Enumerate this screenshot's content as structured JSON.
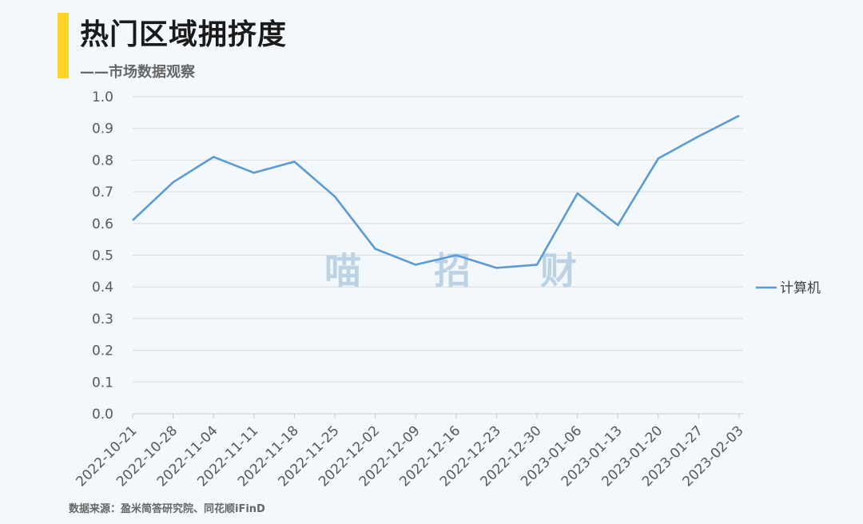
{
  "header": {
    "title": "热门区域拥挤度",
    "subtitle": "——市场数据观察",
    "accent_color": "#fdd22a"
  },
  "watermark": {
    "chars": [
      "喵",
      "招",
      "财"
    ]
  },
  "source": "数据来源：盈米简答研究院、同花顺iFinD",
  "chart_data": {
    "type": "line",
    "title": "",
    "xlabel": "",
    "ylabel": "",
    "x": [
      "2022-10-21",
      "2022-10-28",
      "2022-11-04",
      "2022-11-11",
      "2022-11-18",
      "2022-11-25",
      "2022-12-02",
      "2022-12-09",
      "2022-12-16",
      "2022-12-23",
      "2022-12-30",
      "2023-01-06",
      "2023-01-13",
      "2023-01-20",
      "2023-01-27",
      "2023-02-03"
    ],
    "y_ticks": [
      "1.0",
      "0.9",
      "0.8",
      "0.7",
      "0.6",
      "0.5",
      "0.4",
      "0.3",
      "0.2",
      "0.1",
      "0.0"
    ],
    "ylim": [
      0,
      1.0
    ],
    "grid": true,
    "legend_position": "right",
    "series": [
      {
        "name": "计算机",
        "color": "#5b9bd5",
        "values": [
          0.61,
          0.73,
          0.81,
          0.76,
          0.795,
          0.685,
          0.52,
          0.47,
          0.5,
          0.46,
          0.47,
          0.695,
          0.595,
          0.805,
          0.875,
          0.94
        ]
      }
    ]
  }
}
